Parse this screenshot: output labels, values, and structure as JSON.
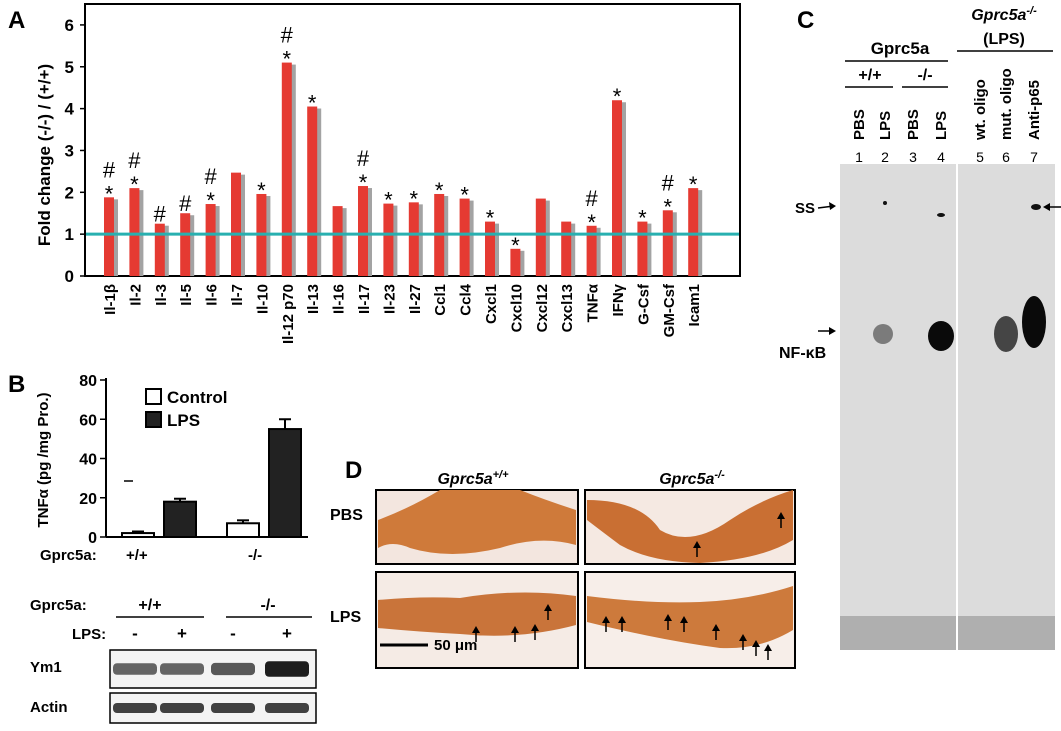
{
  "panel_a": {
    "letter": "A",
    "chart_data": {
      "type": "bar",
      "title": "",
      "xlabel": "",
      "ylabel": "Fold change  (-/-) / (+/+)",
      "ylim": [
        0,
        6.5
      ],
      "yticks": [
        "0",
        "1",
        "2",
        "3",
        "4",
        "5",
        "6"
      ],
      "reference_line": 1,
      "categories": [
        "Il-1β",
        "Il-2",
        "Il-3",
        "Il-5",
        "Il-6",
        "Il-7",
        "Il-10",
        "Il-12 p70",
        "Il-13",
        "Il-16",
        "Il-17",
        "Il-23",
        "Il-27",
        "Ccl1",
        "Ccl4",
        "Cxcl1",
        "Cxcl10",
        "Cxcl12",
        "Cxcl13",
        "TNFα",
        "IFNγ",
        "G-Csf",
        "GM-Csf",
        "Icam1"
      ],
      "values": [
        1.88,
        2.1,
        1.25,
        1.5,
        1.72,
        2.47,
        1.96,
        5.1,
        4.05,
        1.67,
        2.15,
        1.73,
        1.76,
        1.96,
        1.85,
        1.3,
        0.65,
        1.85,
        1.3,
        1.2,
        4.2,
        1.3,
        1.57,
        2.1
      ],
      "star": [
        true,
        true,
        false,
        false,
        true,
        false,
        true,
        true,
        true,
        false,
        true,
        true,
        true,
        true,
        true,
        true,
        true,
        false,
        false,
        true,
        true,
        true,
        true,
        true
      ],
      "hash": [
        true,
        true,
        true,
        true,
        true,
        false,
        false,
        true,
        false,
        false,
        true,
        false,
        false,
        false,
        false,
        false,
        false,
        false,
        false,
        true,
        false,
        false,
        true,
        false
      ],
      "star_symbol": "*",
      "hash_symbol": "#",
      "colors": {
        "bar": "#e53a32",
        "shadow": "#a3a3a3",
        "line": "#28b0b0"
      }
    }
  },
  "panel_b": {
    "letter": "B",
    "chart_data": {
      "type": "bar",
      "title": "",
      "ylabel": "TNFα (pg /mg Pro.)",
      "ylim": [
        0,
        80
      ],
      "yticks": [
        "0",
        "20",
        "40",
        "60",
        "80"
      ],
      "groups": [
        "+/+",
        "-/-"
      ],
      "group_prefix": "Gprc5a:",
      "series": [
        {
          "name": "Control",
          "values": [
            2,
            7
          ],
          "errors": [
            0.8,
            1.5
          ]
        },
        {
          "name": "LPS",
          "values": [
            18,
            55
          ],
          "errors": [
            1.5,
            5
          ]
        }
      ],
      "colors": {
        "Control": "#ffffff",
        "LPS": "#222222"
      }
    },
    "blot": {
      "gprc5a_label": "Gprc5a:",
      "genotypes": [
        "+/+",
        "-/-"
      ],
      "lps_label": "LPS:",
      "lps": [
        "-",
        "+",
        "-",
        "+"
      ],
      "rows": [
        {
          "label": "Ym1",
          "intensity": [
            0.55,
            0.55,
            0.62,
            0.95
          ]
        },
        {
          "label": "Actin",
          "intensity": [
            0.75,
            0.75,
            0.75,
            0.75
          ]
        }
      ]
    }
  },
  "panel_c": {
    "letter": "C",
    "gprc5a_header": "Gprc5a",
    "ko_header_gene": "Gprc5a",
    "ko_header_sup": "-/-",
    "ko_header_note": "(LPS)",
    "genotypes": [
      "+/+",
      "-/-"
    ],
    "lanes": [
      "PBS",
      "LPS",
      "PBS",
      "LPS",
      "wt. oligo",
      "mut. oligo",
      "Anti-p65"
    ],
    "lane_numbers": [
      "1",
      "2",
      "3",
      "4",
      "5",
      "6",
      "7"
    ],
    "labels": {
      "ss": "SS",
      "nfkb": "NF-κB"
    }
  },
  "panel_d": {
    "letter": "D",
    "col_gene": "Gprc5a",
    "col_sups": [
      "+/+",
      "-/-"
    ],
    "rows": [
      "PBS",
      "LPS"
    ],
    "scale_bar": "50 μm"
  }
}
